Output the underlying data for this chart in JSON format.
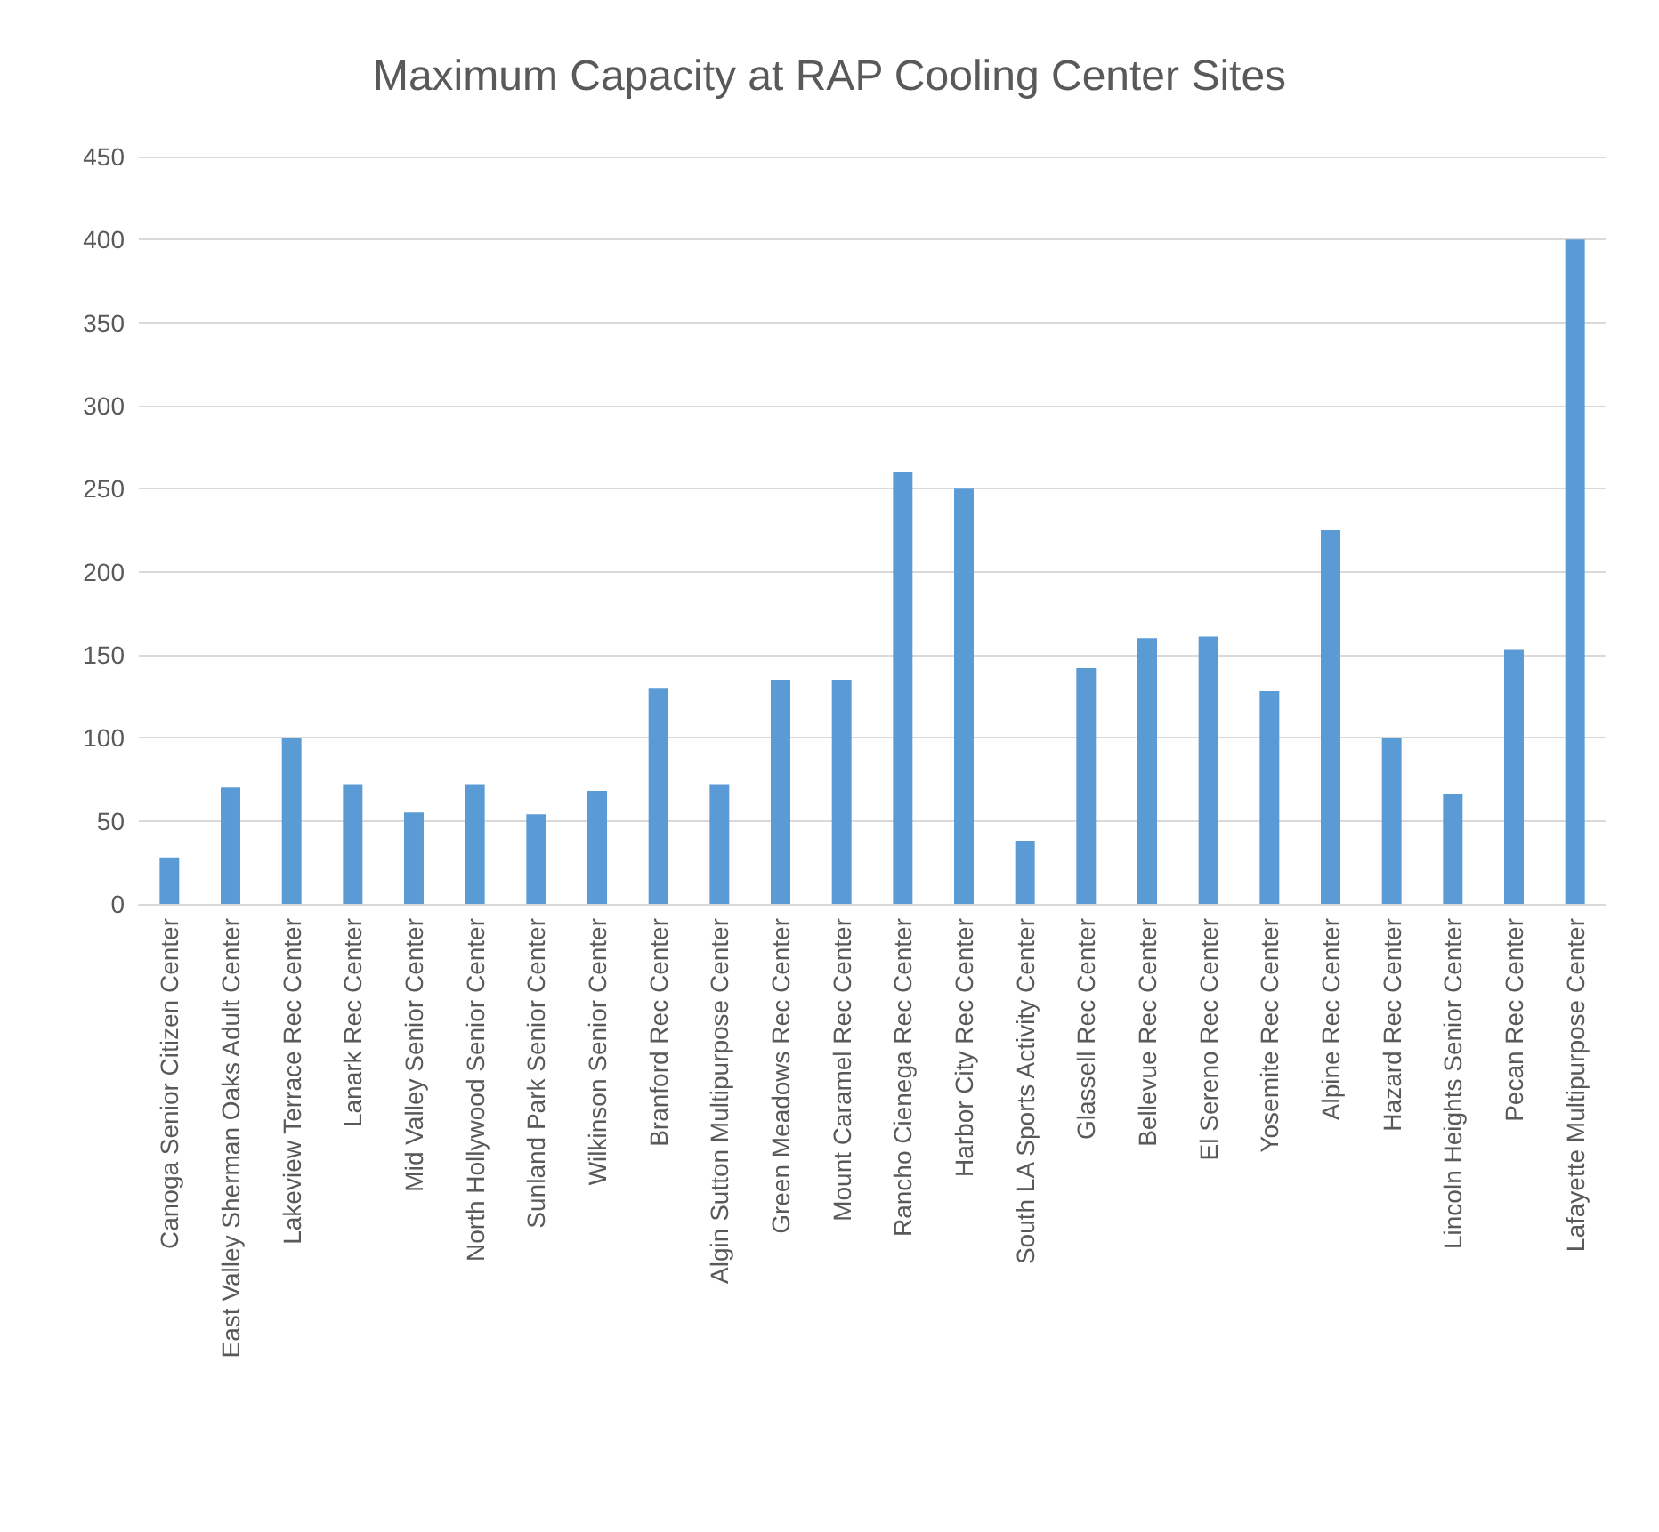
{
  "chart_data": {
    "type": "bar",
    "title": "Maximum Capacity at RAP Cooling Center Sites",
    "categories": [
      "Canoga Senior Citizen Center",
      "East Valley Sherman Oaks Adult Center",
      "Lakeview Terrace Rec Center",
      "Lanark Rec Center",
      "Mid Valley Senior Center",
      "North Hollywood Senior Center",
      "Sunland Park Senior Center",
      "Wilkinson Senior Center",
      "Branford Rec Center",
      "Algin Sutton Multipurpose Center",
      "Green Meadows Rec Center",
      "Mount Caramel Rec Center",
      "Rancho Cienega Rec Center",
      "Harbor City Rec Center",
      "South LA Sports Activity Center",
      "Glassell Rec Center",
      "Bellevue Rec Center",
      "El Sereno Rec Center",
      "Yosemite Rec Center",
      "Alpine Rec Center",
      "Hazard Rec Center",
      "Lincoln Heights Senior Center",
      "Pecan Rec Center",
      "Lafayette Multipurpose Center"
    ],
    "values": [
      28,
      70,
      100,
      72,
      55,
      72,
      54,
      68,
      130,
      72,
      135,
      135,
      260,
      250,
      38,
      142,
      160,
      161,
      128,
      225,
      100,
      66,
      153,
      400
    ],
    "color": "#5b9bd5",
    "ylim": [
      0,
      450
    ],
    "yticks": [
      0,
      50,
      100,
      150,
      200,
      250,
      300,
      350,
      400,
      450
    ],
    "grid": "y"
  }
}
